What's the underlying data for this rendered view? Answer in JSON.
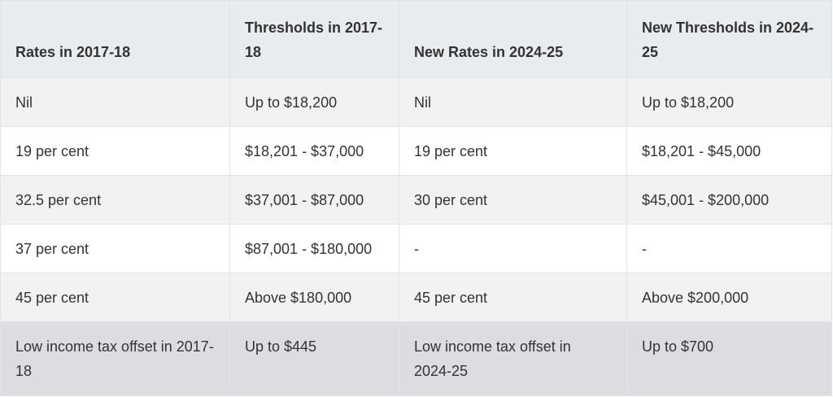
{
  "table": {
    "header": [
      "Rates in 2017-18",
      "Thresholds in 2017-18",
      "New Rates in 2024-25",
      "New Thresholds in 2024-25"
    ],
    "rows": [
      [
        "Nil",
        "Up to $18,200",
        "Nil",
        "Up to $18,200"
      ],
      [
        "19 per cent",
        "$18,201 - $37,000",
        "19 per cent",
        "$18,201 - $45,000"
      ],
      [
        "32.5 per cent",
        "$37,001 - $87,000",
        "30 per cent",
        "$45,001 - $200,000"
      ],
      [
        "37 per cent",
        "$87,001 - $180,000",
        "-",
        "-"
      ],
      [
        "45 per cent",
        "Above $180,000",
        "45 per cent",
        "Above $200,000"
      ],
      [
        "Low income tax offset in 2017-18",
        "Up to $445",
        "Low income tax offset in 2024-25",
        "Up to $700"
      ]
    ]
  }
}
